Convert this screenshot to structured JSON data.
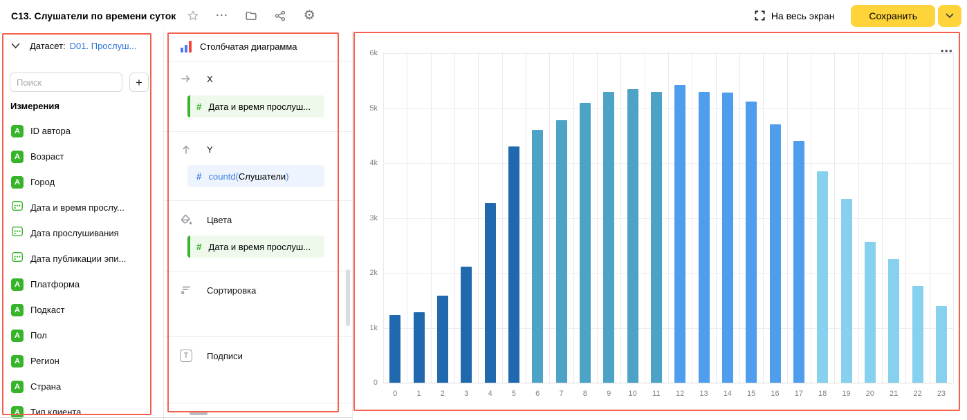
{
  "window": {
    "title": "C13. Слушатели по времени суток",
    "fullscreen_label": "На весь экран",
    "save_label": "Сохранить"
  },
  "icons": {
    "overflow_menu": "···",
    "chart_menu": "•••",
    "string_badge": "A",
    "plus": "+"
  },
  "colors": {
    "accent_yellow": "#ffd43a",
    "annotation_red": "#f4604e",
    "dimension_green": "#38b42b",
    "measure_blue": "#3d7fe0",
    "link_blue": "#3072dd"
  },
  "dataset_panel": {
    "dataset_label": "Датасет:",
    "dataset_name": "D01. Прослуш...",
    "search_placeholder": "Поиск",
    "section_title": "Измерения",
    "fields": [
      {
        "label": "ID автора",
        "type": "string"
      },
      {
        "label": "Возраст",
        "type": "string"
      },
      {
        "label": "Город",
        "type": "string"
      },
      {
        "label": "Дата и время прослу...",
        "type": "date"
      },
      {
        "label": "Дата прослушивания",
        "type": "date"
      },
      {
        "label": "Дата публикации эпи...",
        "type": "date"
      },
      {
        "label": "Платформа",
        "type": "string"
      },
      {
        "label": "Подкаст",
        "type": "string"
      },
      {
        "label": "Пол",
        "type": "string"
      },
      {
        "label": "Регион",
        "type": "string"
      },
      {
        "label": "Страна",
        "type": "string"
      },
      {
        "label": "Тип клиента",
        "type": "string"
      }
    ]
  },
  "config_panel": {
    "chart_type": "Столбчатая диаграмма",
    "x_section": {
      "label": "X",
      "field": "Дата и время прослуш..."
    },
    "y_section": {
      "label": "Y",
      "fn_open": "countd(",
      "fn_arg": "Слушатели",
      "fn_close": ")"
    },
    "colors_section": {
      "label": "Цвета",
      "field": "Дата и время прослуш..."
    },
    "sort_section": {
      "label": "Сортировка"
    },
    "labels_section": {
      "label": "Подписи"
    }
  },
  "chart_data": {
    "type": "bar",
    "title": "",
    "xlabel": "",
    "ylabel": "",
    "categories": [
      "0",
      "1",
      "2",
      "3",
      "4",
      "5",
      "6",
      "7",
      "8",
      "9",
      "10",
      "11",
      "12",
      "13",
      "14",
      "15",
      "16",
      "17",
      "18",
      "19",
      "20",
      "21",
      "22",
      "23"
    ],
    "values": [
      1230,
      1280,
      1580,
      2110,
      3270,
      4300,
      4610,
      4780,
      5100,
      5300,
      5340,
      5300,
      5420,
      5290,
      5280,
      5120,
      4700,
      4400,
      3850,
      3350,
      2560,
      2250,
      1760,
      1390
    ],
    "ylim": [
      0,
      6000
    ],
    "y_ticks": [
      0,
      1000,
      2000,
      3000,
      4000,
      5000,
      6000
    ],
    "y_tick_labels": [
      "0",
      "1k",
      "2k",
      "3k",
      "4k",
      "5k",
      "6k"
    ],
    "grid": true,
    "legend": "none",
    "color_groups": [
      {
        "from": 0,
        "to": 5,
        "color": "#2169ae"
      },
      {
        "from": 6,
        "to": 11,
        "color": "#4da3c6"
      },
      {
        "from": 12,
        "to": 17,
        "color": "#4f9ded"
      },
      {
        "from": 18,
        "to": 23,
        "color": "#87d1ee"
      }
    ]
  }
}
